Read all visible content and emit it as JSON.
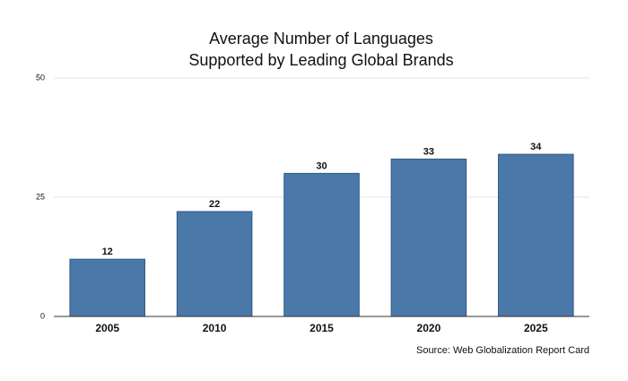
{
  "chart_data": {
    "type": "bar",
    "title": [
      "Average Number of Languages",
      "Supported by Leading Global Brands"
    ],
    "categories": [
      "2005",
      "2010",
      "2015",
      "2020",
      "2025"
    ],
    "values": [
      12,
      22,
      30,
      33,
      34
    ],
    "color": "#4a78a8",
    "ylim": [
      0,
      50
    ],
    "yticks": [
      0,
      25,
      50
    ],
    "grid": true,
    "source": "Source: Web Globalization Report Card"
  }
}
